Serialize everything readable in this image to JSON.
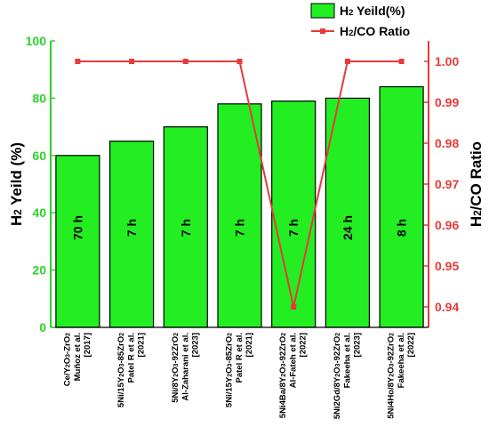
{
  "chart_data": {
    "type": "bar",
    "categories": [
      {
        "lines": [
          "Ce/Y",
          "2",
          "O",
          "3",
          "-ZrO",
          "2"
        ],
        "sub": [
          "Muñoz et al.",
          "[2017]"
        ]
      },
      {
        "lines": [
          "5Ni/15Y",
          "2",
          "O",
          "3",
          "-85ZrO",
          "2"
        ],
        "sub": [
          "Patel R et al.",
          "[2021]"
        ]
      },
      {
        "lines": [
          "5Ni/8Y",
          "2",
          "O",
          "3",
          "-92ZrO",
          "2"
        ],
        "sub": [
          "Al-Zaharani et al.",
          "[2023]"
        ]
      },
      {
        "lines": [
          "5Ni/15Y",
          "2",
          "O",
          "3",
          "-85ZrO",
          "2"
        ],
        "sub": [
          "Patel R et al.",
          "[2021]"
        ]
      },
      {
        "lines": [
          "5Ni4Ba/8Y",
          "2",
          "O",
          "3",
          "-92ZrO",
          "2"
        ],
        "sub": [
          "Al-Fateh et al.",
          "[2022]"
        ]
      },
      {
        "lines": [
          "5Ni2Gd/8Y",
          "2",
          "O",
          "3",
          "-92ZrO",
          "2"
        ],
        "sub": [
          "Fakeeha et al.",
          "[2023]"
        ]
      },
      {
        "lines": [
          "5Ni4Ho/8Y",
          "2",
          "O",
          "3",
          "-92ZrO",
          "2"
        ],
        "sub": [
          "Fakeeha et al.",
          "[2022]"
        ]
      }
    ],
    "series": [
      {
        "name": "H2 Yeild(%)",
        "axis": "left",
        "kind": "bar",
        "values": [
          60,
          65,
          70,
          78,
          79,
          80,
          84
        ],
        "color": "#22ee22"
      },
      {
        "name": "H2/CO Ratio",
        "axis": "right",
        "kind": "line",
        "values": [
          1.0,
          1.0,
          1.0,
          1.0,
          0.94,
          1.0,
          1.0
        ],
        "color": "#e83a3a"
      }
    ],
    "bar_labels": [
      "70 h",
      "7 h",
      "7 h",
      "7 h",
      "7 h",
      "24 h",
      "8 h"
    ],
    "legend": [
      {
        "prefix": "H",
        "sub": "2",
        "suffix": " Yeild(%)"
      },
      {
        "prefix": "H",
        "sub": "2",
        "suffix": "/CO Ratio"
      }
    ],
    "ylabel_left": {
      "prefix": "H",
      "sub": "2",
      "suffix": " Yeild (%)"
    },
    "ylabel_right": {
      "prefix": "H",
      "sub": "2",
      "suffix": "/CO Ratio"
    },
    "ylim_left": [
      0,
      100
    ],
    "yticks_left": [
      "0",
      "20",
      "40",
      "60",
      "80",
      "100"
    ],
    "ylim_right": [
      0.935,
      1.005
    ],
    "yticks_right": [
      "0.94",
      "0.95",
      "0.96",
      "0.97",
      "0.98",
      "0.99",
      "1.00"
    ],
    "legend_position": "top-right",
    "grid": false
  }
}
